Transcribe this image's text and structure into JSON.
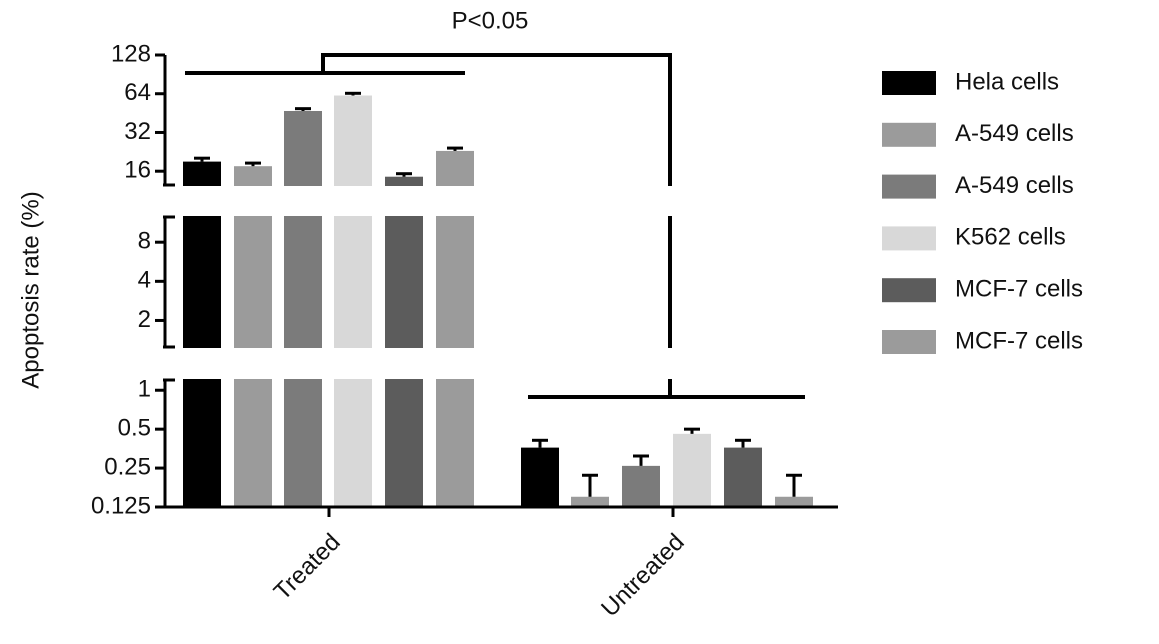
{
  "chart_data": {
    "type": "bar",
    "y_label": "Apoptosis rate (%)",
    "annotation": "P<0.05",
    "categories": [
      "Treated",
      "Untreated"
    ],
    "yscale": "log",
    "legend": "right",
    "y_segments": [
      {
        "ylim": [
          0.125,
          1.2
        ],
        "yticks": [
          0.125,
          0.25,
          0.5,
          1
        ]
      },
      {
        "ylim": [
          1.25,
          12.5
        ],
        "yticks": [
          2,
          4,
          8
        ]
      },
      {
        "ylim": [
          12.5,
          128
        ],
        "yticks": [
          16,
          32,
          64,
          128
        ]
      }
    ],
    "series": [
      {
        "name": "Hela cells",
        "color": "#000000",
        "values": [
          19,
          0.36
        ],
        "errors": [
          1.2,
          0.05
        ]
      },
      {
        "name": "A-549 cells",
        "color": "#9b9b9b",
        "values": [
          17.5,
          0.15
        ],
        "errors": [
          1,
          0.07
        ]
      },
      {
        "name": "A-549 cells",
        "color": "#7b7b7b",
        "values": [
          47,
          0.26
        ],
        "errors": [
          2,
          0.05
        ]
      },
      {
        "name": "K562 cells",
        "color": "#d8d8d8",
        "values": [
          62,
          0.46
        ],
        "errors": [
          2.5,
          0.04
        ]
      },
      {
        "name": "MCF-7 cells",
        "color": "#5c5c5c",
        "values": [
          14.5,
          0.36
        ],
        "errors": [
          0.8,
          0.05
        ]
      },
      {
        "name": "MCF-7 cells",
        "color": "#9b9b9b",
        "values": [
          23,
          0.15
        ],
        "errors": [
          1.2,
          0.07
        ]
      }
    ]
  }
}
